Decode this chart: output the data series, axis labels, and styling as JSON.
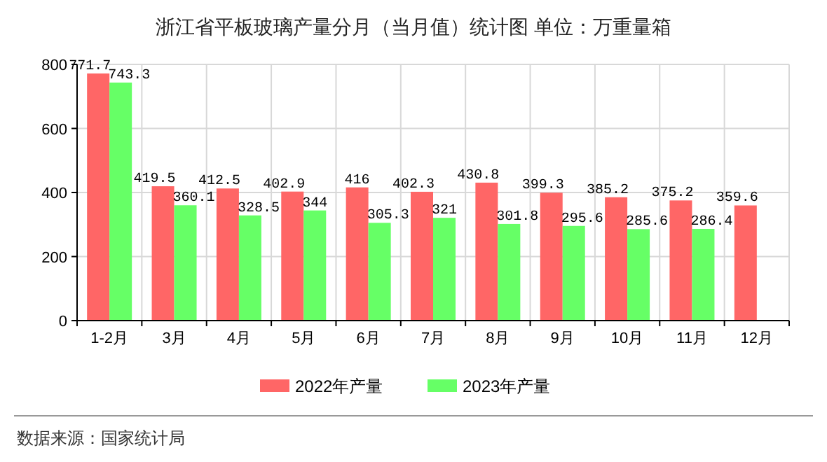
{
  "chart_data": {
    "type": "bar",
    "title": "浙江省平板玻璃产量分月（当月值）统计图 单位：万重量箱",
    "categories": [
      "1-2月",
      "3月",
      "4月",
      "5月",
      "6月",
      "7月",
      "8月",
      "9月",
      "10月",
      "11月",
      "12月"
    ],
    "series": [
      {
        "name": "2022年产量",
        "color": "#ff6666",
        "values": [
          771.7,
          419.5,
          412.5,
          402.9,
          416,
          402.3,
          430.8,
          399.3,
          385.2,
          375.2,
          359.6
        ]
      },
      {
        "name": "2023年产量",
        "color": "#66ff66",
        "values": [
          743.3,
          360.1,
          328.5,
          344,
          305.3,
          321,
          301.8,
          295.6,
          285.6,
          286.4,
          null
        ]
      }
    ],
    "ylim": [
      0,
      800
    ],
    "yticks": [
      0,
      200,
      400,
      600,
      800
    ],
    "grid": true,
    "legend": "bottom",
    "data_labels": true,
    "annotations": [
      "数据来源：国家统计局"
    ]
  }
}
